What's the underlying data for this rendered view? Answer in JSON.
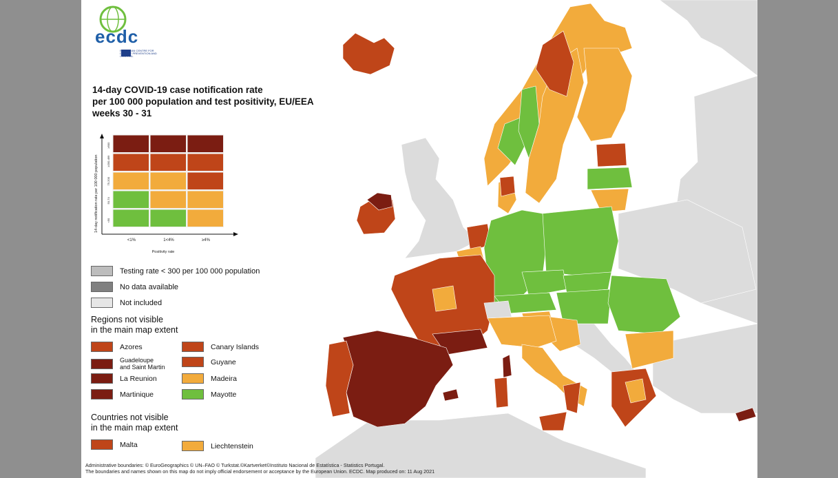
{
  "logo": {
    "text": "ecdc",
    "subtitle": "EUROPEAN CENTRE FOR DISEASE PREVENTION AND CONTROL"
  },
  "title": {
    "line1": "14-day COVID-19 case notification rate",
    "line2": "per 100 000 population and test positivity, EU/EEA",
    "line3": "weeks 30 - 31"
  },
  "matrix": {
    "ylabel": "14-day notification rate per 100 000 population",
    "xlabel": "Positivity rate",
    "row_labels": [
      "≥500",
      "≥200-499",
      "75-200",
      "50-74",
      "<50"
    ],
    "col_labels": [
      "<1%",
      "1<4%",
      "≥4%"
    ],
    "cells": [
      [
        "#7b1d12",
        "#7b1d12",
        "#7b1d12"
      ],
      [
        "#bf4519",
        "#bf4519",
        "#bf4519"
      ],
      [
        "#f2ab3c",
        "#f2ab3c",
        "#bf4519"
      ],
      [
        "#6fbf3e",
        "#f2ab3c",
        "#f2ab3c"
      ],
      [
        "#6fbf3e",
        "#6fbf3e",
        "#f2ab3c"
      ]
    ]
  },
  "legend": {
    "testing": "Testing rate < 300 per 100 000 population",
    "nodata": "No data available",
    "notincluded": "Not included",
    "colors": {
      "testing": "#bdbdbd",
      "nodata": "#808080",
      "notincluded": "#e6e6e6"
    }
  },
  "regions": {
    "title1": "Regions not visible",
    "title2": "in the main map extent",
    "items": [
      {
        "label": "Azores",
        "color": "#bf4519"
      },
      {
        "label": "Canary Islands",
        "color": "#bf4519"
      },
      {
        "label": "Guadeloupe",
        "label2": "and Saint Martin",
        "color": "#7b1d12"
      },
      {
        "label": "Guyane",
        "color": "#bf4519"
      },
      {
        "label": "La Reunion",
        "color": "#7b1d12"
      },
      {
        "label": "Madeira",
        "color": "#f2ab3c"
      },
      {
        "label": "Martinique",
        "color": "#7b1d12"
      },
      {
        "label": "Mayotte",
        "color": "#6fbf3e"
      }
    ]
  },
  "countries": {
    "title1": "Countries not visible",
    "title2": "in the main map extent",
    "items": [
      {
        "label": "Malta",
        "color": "#bf4519"
      },
      {
        "label": "Liechtenstein",
        "color": "#f2ab3c"
      }
    ]
  },
  "footer": {
    "line1": "Administrative boundaries: © EuroGeographics © UN–FAO © Turkstat.©Kartverket©Instituto Nacional de Estatística - Statistics Portugal.",
    "line2": "The boundaries and names shown on this map do not imply official endorsement or acceptance by the European Union. ECDC. Map produced on: 11 Aug 2021"
  },
  "map_colors": {
    "sea": "#ffffff",
    "nonEU": "#dcdcdc",
    "dark_red": "#7b1d12",
    "red": "#bf4519",
    "orange": "#f2ab3c",
    "green": "#6fbf3e"
  }
}
